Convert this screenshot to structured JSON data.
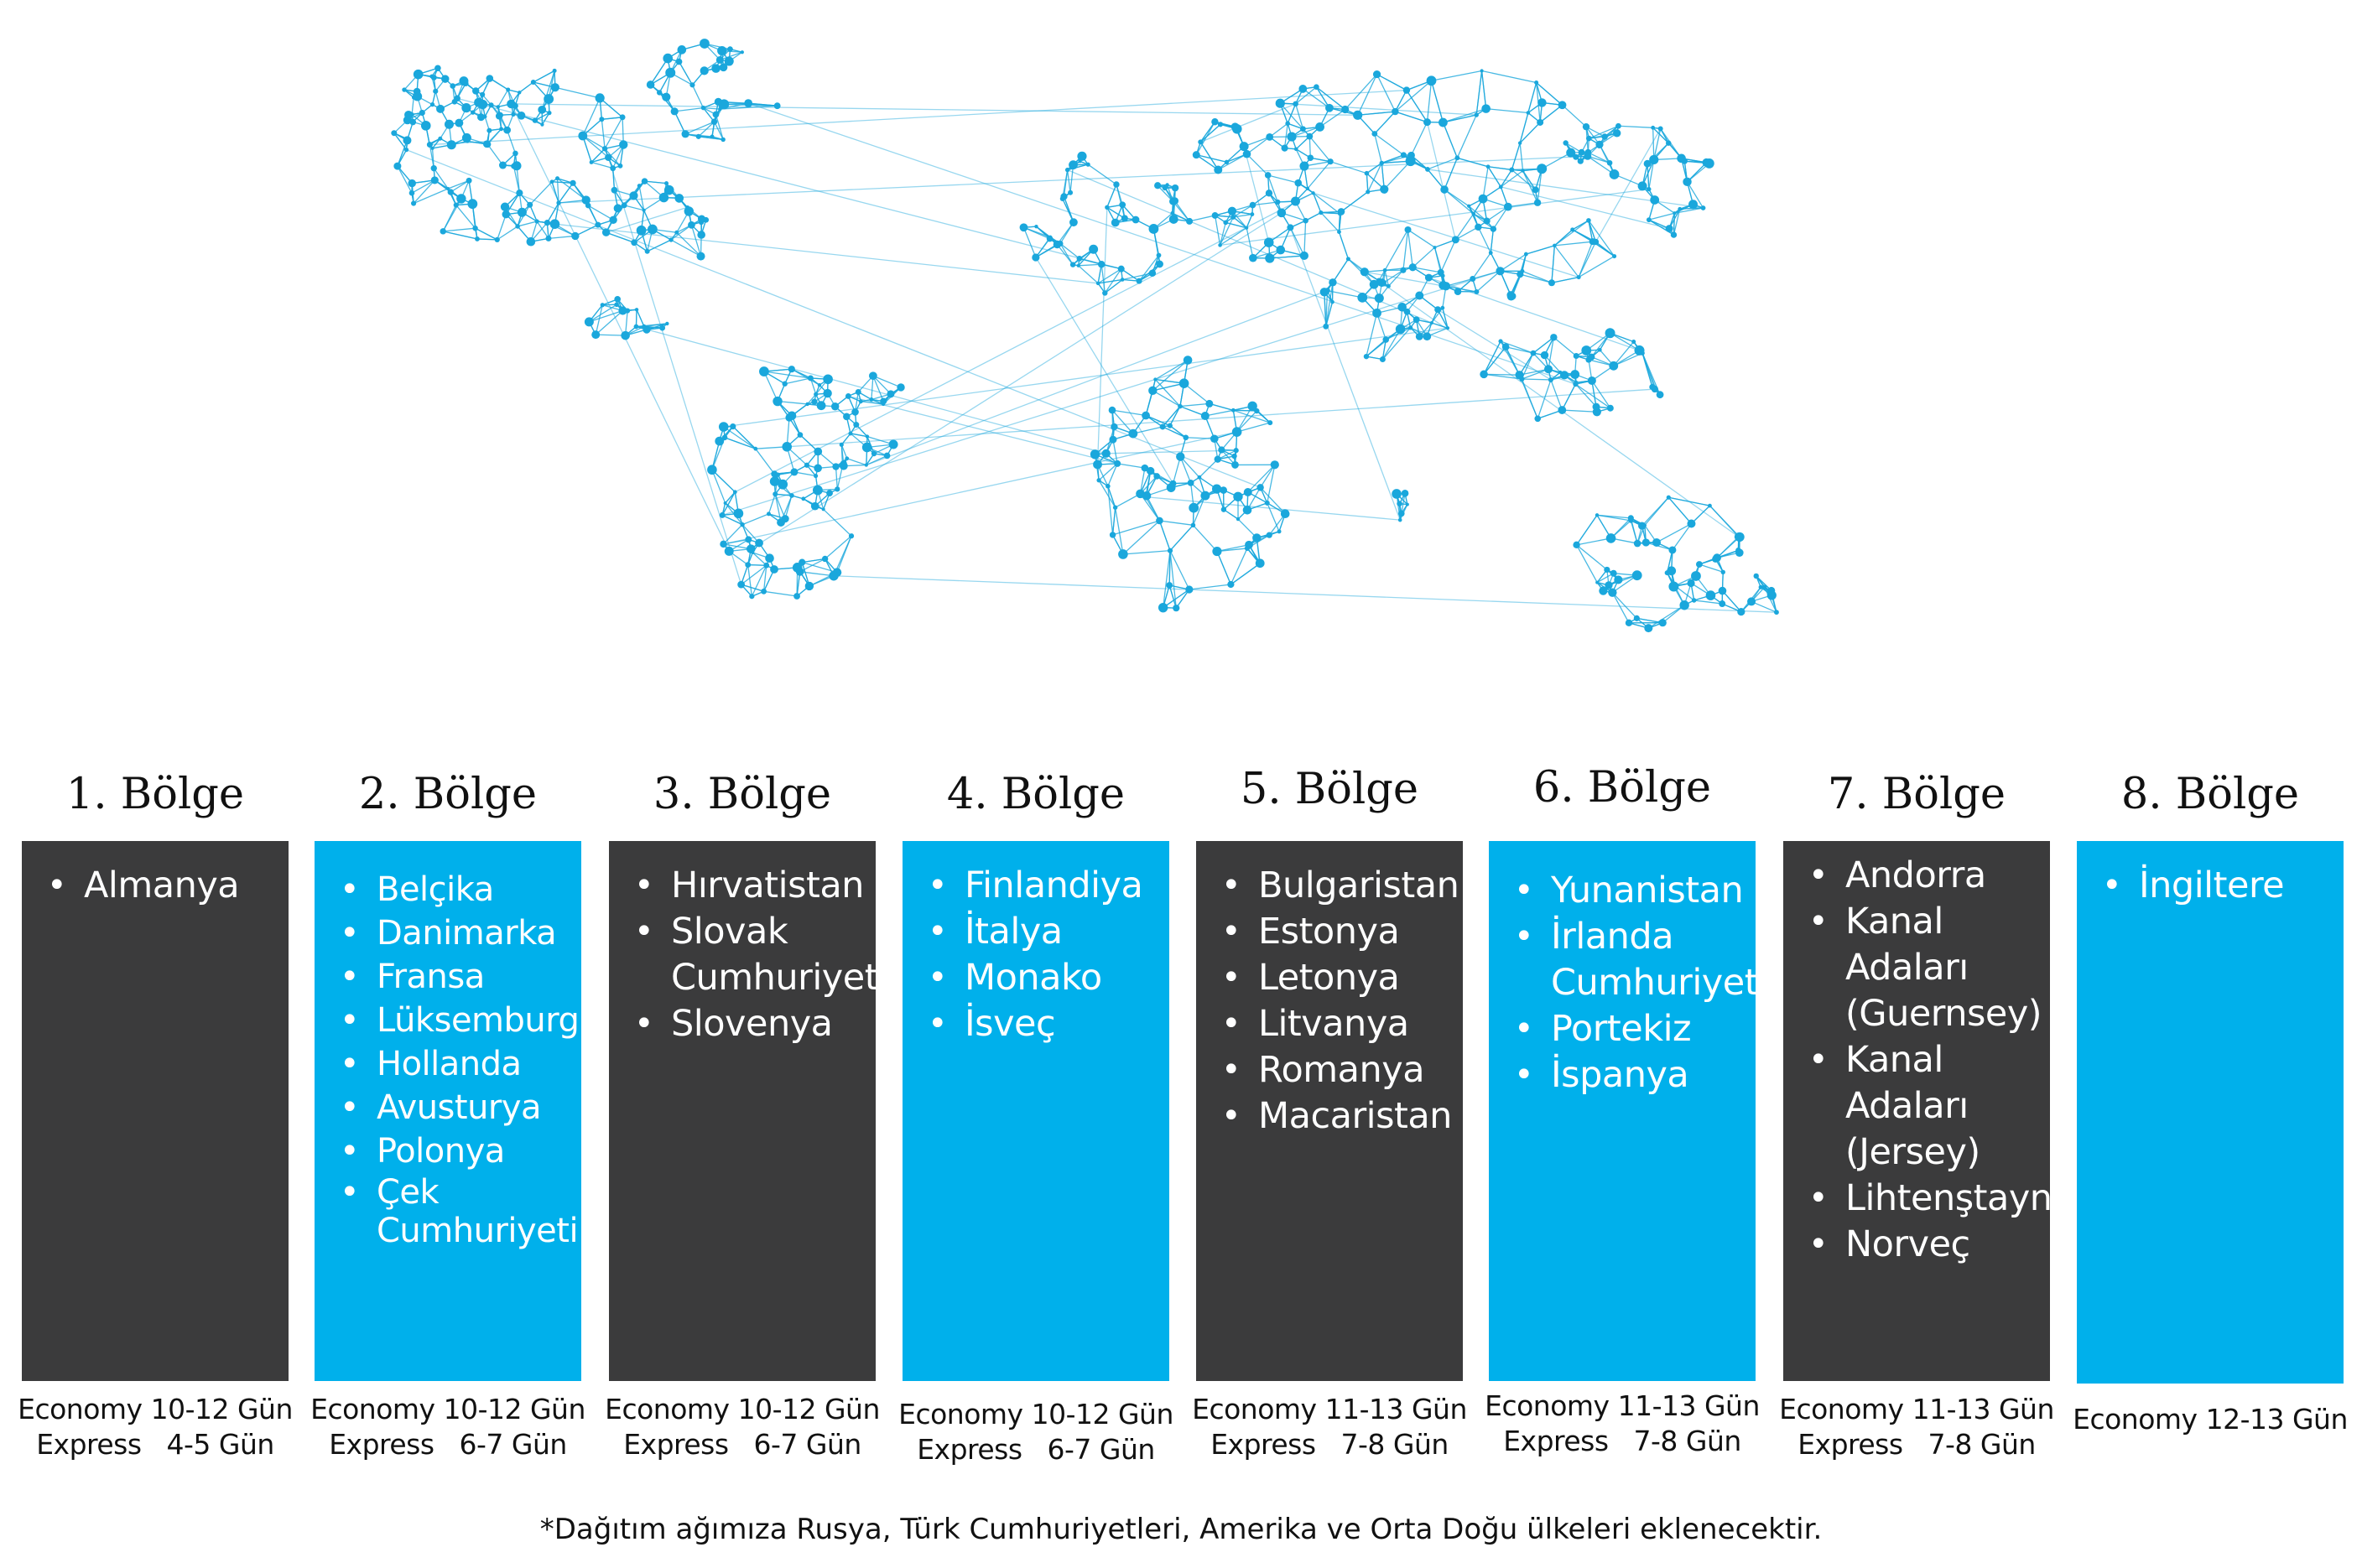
{
  "regions": [
    {
      "title": "1. Bölge",
      "theme": "dark",
      "countries": [
        "Almanya"
      ],
      "timing": [
        "Economy 10-12 Gün",
        "Express   4-5 Gün"
      ]
    },
    {
      "title": "2. Bölge",
      "theme": "blue",
      "countries": [
        "Belçika",
        "Danimarka",
        "Fransa",
        "Lüksemburg",
        "Hollanda",
        "Avusturya",
        "Polonya",
        "Çek Cumhuriyeti"
      ],
      "timing": [
        "Economy 10-12 Gün",
        "Express   6-7 Gün"
      ]
    },
    {
      "title": "3. Bölge",
      "theme": "dark",
      "countries": [
        "Hırvatistan",
        "Slovak Cumhuriyeti",
        "Slovenya"
      ],
      "timing": [
        "Economy 10-12 Gün",
        "Express   6-7 Gün"
      ]
    },
    {
      "title": "4. Bölge",
      "theme": "blue",
      "countries": [
        "Finlandiya",
        "İtalya",
        "Monako",
        "İsveç"
      ],
      "timing": [
        "Economy 10-12 Gün",
        "Express   6-7 Gün"
      ]
    },
    {
      "title": "5. Bölge",
      "theme": "dark",
      "countries": [
        "Bulgaristan",
        "Estonya",
        "Letonya",
        "Litvanya",
        "Romanya",
        "Macaristan"
      ],
      "timing": [
        "Economy 11-13 Gün",
        "Express   7-8 Gün"
      ]
    },
    {
      "title": "6. Bölge",
      "theme": "blue",
      "countries": [
        "Yunanistan",
        "İrlanda Cumhuriyeti",
        "Portekiz",
        "İspanya"
      ],
      "timing": [
        "Economy 11-13 Gün",
        "Express   7-8 Gün"
      ]
    },
    {
      "title": "7. Bölge",
      "theme": "dark",
      "countries": [
        "Andorra",
        "Kanal Adaları (Guernsey)",
        "Kanal Adaları (Jersey)",
        "Lihtenştayn",
        "Norveç"
      ],
      "timing": [
        "Economy 11-13 Gün",
        "Express   7-8 Gün"
      ]
    },
    {
      "title": "8. Bölge",
      "theme": "blue",
      "countries": [
        "İngiltere"
      ],
      "timing": [
        "Economy 12-13 Gün"
      ]
    }
  ],
  "footnote": "*Dağıtım ağımıza Rusya, Türk Cumhuriyetleri, Amerika ve Orta Doğu ülkeleri eklenecektir.",
  "colors": {
    "dark": "#3b3b3c",
    "blue": "#00b0eb",
    "network": "#1aa7dc"
  },
  "map": {
    "icon": "world-network-map"
  }
}
